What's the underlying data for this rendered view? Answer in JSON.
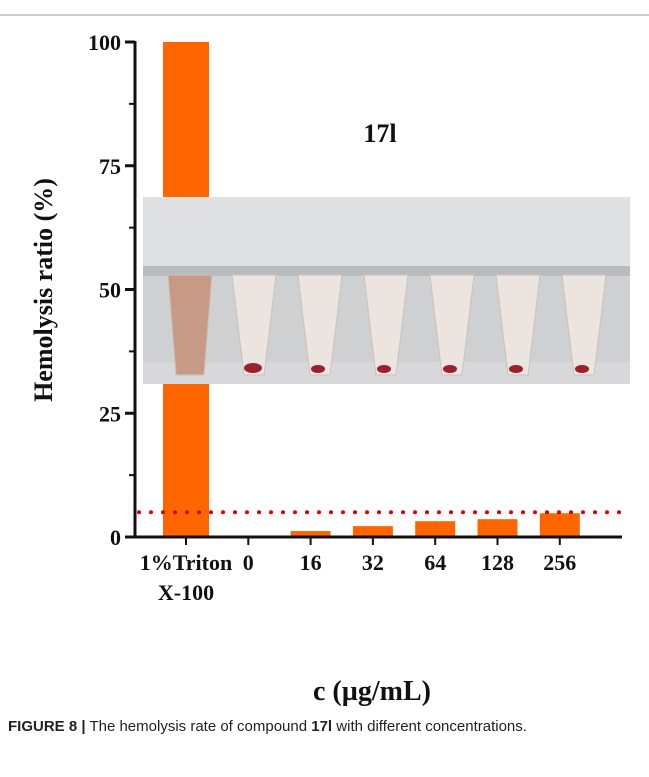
{
  "chart_data": {
    "type": "bar",
    "title": "17l",
    "ylabel": "Hemolysis ratio (%)",
    "xlabel": "c (µg/mL)",
    "categories": [
      "1%Triton X-100",
      "0",
      "16",
      "32",
      "64",
      "128",
      "256"
    ],
    "values": [
      100,
      0,
      1.2,
      2.2,
      3.2,
      3.6,
      4.8
    ],
    "color": "#ff6600",
    "ylim": [
      0,
      100
    ],
    "yticks": [
      0,
      25,
      50,
      75,
      100
    ],
    "yminorticks": [
      12.5,
      37.5,
      62.5,
      87.5
    ],
    "reference_line": {
      "value": 5,
      "color": "#e00000"
    }
  },
  "caption": {
    "label": "FIGURE 8 |",
    "parts": [
      "The hemolysis rate of compound",
      "17l",
      "with different concentrations."
    ]
  }
}
